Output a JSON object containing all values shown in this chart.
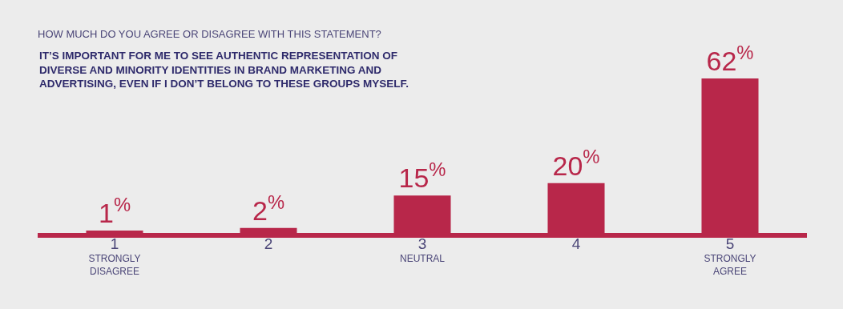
{
  "chart_data": {
    "type": "bar",
    "title": "HOW MUCH DO YOU AGREE OR DISAGREE WITH THIS STATEMENT?",
    "subtitle": "IT’S IMPORTANT FOR ME TO SEE AUTHENTIC REPRESENTATION OF\nDIVERSE AND MINORITY IDENTITIES IN BRAND MARKETING AND\nADVERTISING, EVEN IF I DON’T BELONG TO THESE GROUPS MYSELF.",
    "categories": [
      "1\nSTRONGLY\nDISAGREE",
      "2",
      "3\nNEUTRAL",
      "4",
      "5\nSTRONGLY\nAGREE"
    ],
    "values": [
      1,
      2,
      15,
      20,
      62
    ],
    "value_labels": [
      "1$^{%}$",
      "2$^{%}$",
      "15$^{%}$",
      "20$^{%}$",
      "62$^{%}$"
    ],
    "color": "#b8274a"
  }
}
